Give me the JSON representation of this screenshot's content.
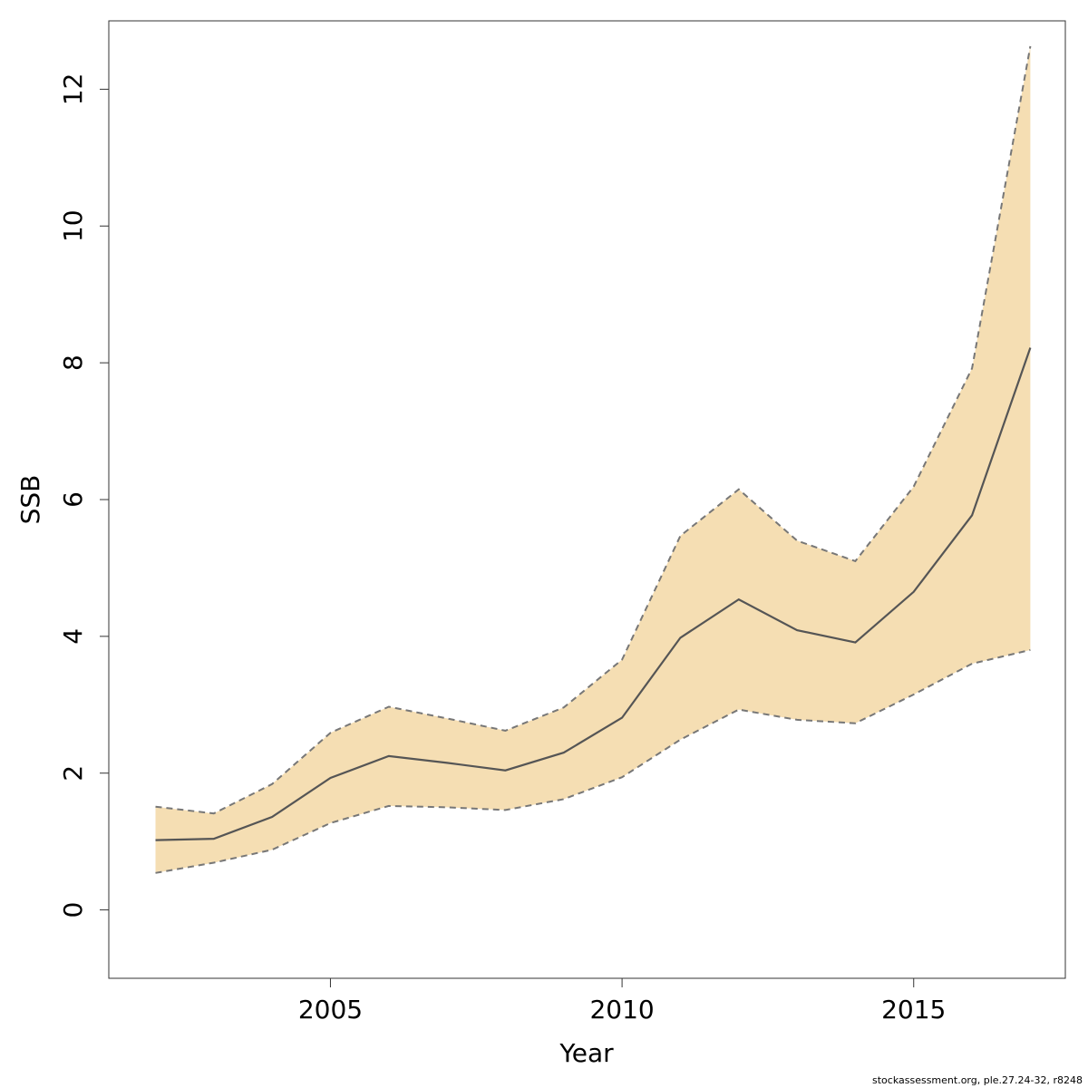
{
  "chart_data": {
    "type": "area",
    "title": "",
    "xlabel": "Year",
    "ylabel": "SSB",
    "xlim": [
      2001.2,
      2017.6
    ],
    "ylim": [
      -1.0,
      13.0
    ],
    "x_ticks": [
      2005,
      2010,
      2015
    ],
    "y_ticks": [
      0,
      2,
      4,
      6,
      8,
      10,
      12
    ],
    "grid": false,
    "legend": "none",
    "x": [
      2002,
      2003,
      2004,
      2005,
      2006,
      2007,
      2008,
      2009,
      2010,
      2011,
      2012,
      2013,
      2014,
      2015,
      2016,
      2017
    ],
    "series": [
      {
        "values": [
          1.02,
          1.04,
          1.36,
          1.93,
          2.25,
          2.15,
          2.04,
          2.3,
          2.81,
          3.98,
          4.54,
          4.09,
          3.91,
          4.65,
          5.77,
          8.22
        ],
        "lower": [
          0.54,
          0.69,
          0.88,
          1.27,
          1.52,
          1.5,
          1.46,
          1.62,
          1.94,
          2.49,
          2.93,
          2.78,
          2.73,
          3.15,
          3.6,
          3.8
        ],
        "upper": [
          1.51,
          1.41,
          1.84,
          2.59,
          2.97,
          2.8,
          2.62,
          2.96,
          3.66,
          5.47,
          6.15,
          5.4,
          5.1,
          6.19,
          7.92,
          12.63
        ]
      }
    ],
    "colors": {
      "band_fill": "#f5deb3",
      "median_line": "#555555",
      "bound_line": "#777777",
      "axis": "#333333"
    }
  },
  "footnote": "stockassessment.org, ple.27.24-32, r8248"
}
